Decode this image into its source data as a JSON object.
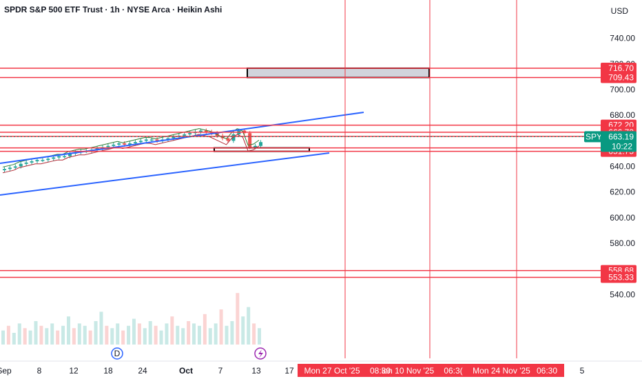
{
  "header": {
    "title": "SPDR S&P 500 ETF Trust · 1h · NYSE Arca · Heikin Ashi",
    "currency": "USD"
  },
  "colors": {
    "level_line": "#f23645",
    "channel_line": "#2962ff",
    "price_badge": "#089981",
    "bull": "#26a69a",
    "bear": "#ef5350",
    "box_fill": "#d1d4dc",
    "box_border": "#000000"
  },
  "icons": [
    "dividend-marker-icon",
    "earnings-marker-icon"
  ],
  "markers": {
    "dividend_letter": "D"
  },
  "chart_data": {
    "type": "candlestick",
    "title": "SPDR S&P 500 ETF Trust · 1h · NYSE Arca · Heikin Ashi",
    "ylim": [
      530,
      750
    ],
    "y_ticks": [
      "740.00",
      "720.00",
      "700.00",
      "680.00",
      "640.00",
      "620.00",
      "600.00",
      "580.00",
      "540.00"
    ],
    "x_ticks": [
      "Sep",
      "8",
      "12",
      "18",
      "24",
      "Oct",
      "7",
      "13",
      "17",
      "5"
    ],
    "x_time_labels": [
      "Mon 27 Oct '25",
      "08:30",
      "ion 10 Nov '25",
      "06:3(",
      "Mon 24 Nov '25",
      "06:30"
    ],
    "horizontal_levels": [
      716.7,
      709.43,
      672.2,
      666.72,
      663.5,
      654.49,
      651.75,
      558.68,
      553.33
    ],
    "horizontal_level_labels": [
      "716.70",
      "709.43",
      "672.20",
      "666.72",
      "663.50",
      "654.49",
      "651.75",
      "558.68",
      "553.33"
    ],
    "current_price": {
      "symbol": "SPY",
      "value": "663.19",
      "countdown": "10:22"
    },
    "channel": {
      "upper": {
        "start": [
          "Sep",
          650
        ],
        "end": [
          "Oct 24",
          682
        ]
      },
      "lower": {
        "start": [
          "Sep",
          634
        ],
        "end": [
          "Oct 24",
          661
        ]
      }
    },
    "zones": [
      {
        "price_range": [
          709.43,
          716.7
        ],
        "time_range": [
          "Oct 13",
          "Nov 10"
        ]
      },
      {
        "price_range": [
          651.75,
          654.49
        ],
        "time_range": [
          "Oct 7",
          "Oct 17"
        ]
      }
    ],
    "vertical_lines": [
      "Oct 27 '25",
      "Nov 10 '25",
      "Nov 24 '25"
    ],
    "price_series": {
      "x_start": "Sep 2",
      "x_end": "Oct 14",
      "values": [
        638,
        639,
        640,
        642,
        643,
        644,
        645,
        645,
        646,
        647,
        648,
        648,
        650,
        651,
        652,
        652,
        653,
        654,
        655,
        656,
        657,
        658,
        657,
        658,
        659,
        660,
        661,
        661,
        660,
        661,
        662,
        663,
        664,
        665,
        666,
        667,
        668,
        667,
        666,
        664,
        662,
        660,
        665,
        668,
        666,
        655,
        656,
        659
      ]
    },
    "volume": {
      "values": [
        6,
        8,
        5,
        9,
        7,
        6,
        10,
        8,
        7,
        9,
        6,
        8,
        12,
        7,
        9,
        8,
        6,
        10,
        14,
        8,
        7,
        9,
        6,
        8,
        11,
        9,
        7,
        10,
        8,
        6,
        9,
        12,
        8,
        7,
        10,
        9,
        8,
        13,
        7,
        9,
        15,
        8,
        10,
        22,
        12,
        16,
        9,
        7
      ]
    }
  }
}
